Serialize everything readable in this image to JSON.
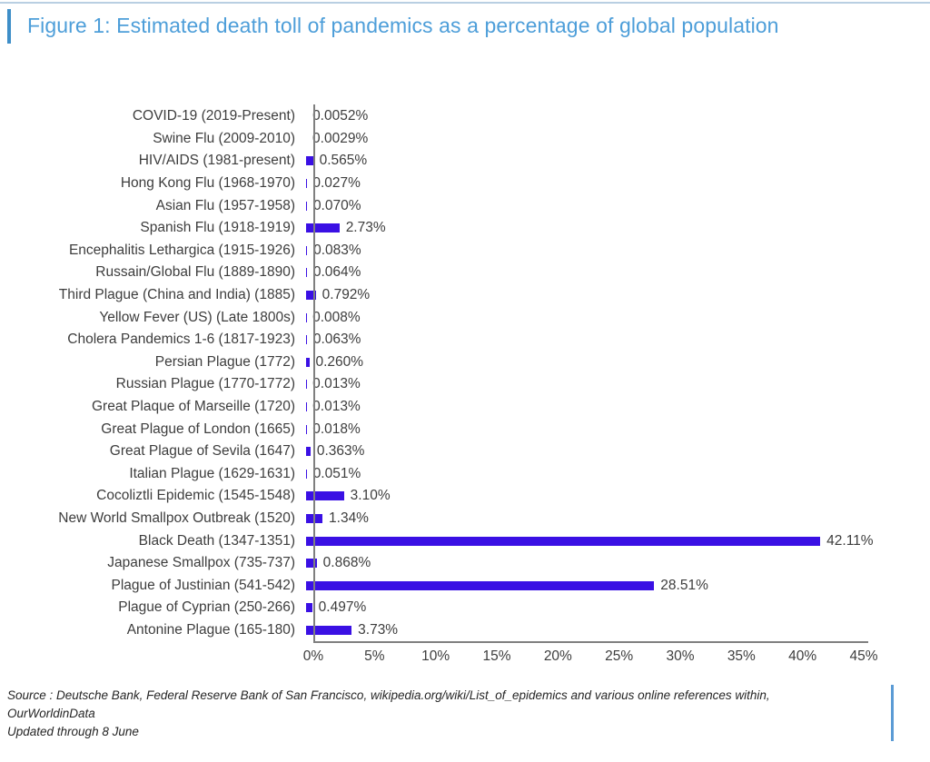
{
  "header": {
    "title": "Figure 1: Estimated death toll of pandemics as a percentage of global population"
  },
  "chart_data": {
    "type": "bar",
    "orientation": "horizontal",
    "title": "Estimated death toll of pandemics as a percentage of global population",
    "categories": [
      "COVID-19 (2019-Present)",
      "Swine Flu (2009-2010)",
      "HIV/AIDS (1981-present)",
      "Hong Kong Flu (1968-1970)",
      "Asian Flu (1957-1958)",
      "Spanish Flu (1918-1919)",
      "Encephalitis Lethargica (1915-1926)",
      "Russain/Global Flu (1889-1890)",
      "Third Plague (China and India) (1885)",
      "Yellow Fever (US) (Late 1800s)",
      "Cholera Pandemics 1-6 (1817-1923)",
      "Persian Plague (1772)",
      "Russian Plague (1770-1772)",
      "Great Plaque of Marseille (1720)",
      "Great Plague of London (1665)",
      "Great Plague of Sevila (1647)",
      "Italian Plague (1629-1631)",
      "Cocoliztli Epidemic (1545-1548)",
      "New World Smallpox Outbreak (1520)",
      "Black Death (1347-1351)",
      "Japanese Smallpox (735-737)",
      "Plague of Justinian (541-542)",
      "Plague of Cyprian (250-266)",
      "Antonine Plague (165-180)"
    ],
    "values": [
      0.0052,
      0.0029,
      0.565,
      0.027,
      0.07,
      2.73,
      0.083,
      0.064,
      0.792,
      0.008,
      0.063,
      0.26,
      0.013,
      0.013,
      0.018,
      0.363,
      0.051,
      3.1,
      1.34,
      42.11,
      0.868,
      28.51,
      0.497,
      3.73
    ],
    "value_labels": [
      "0.0052%",
      "0.0029%",
      "0.565%",
      "0.027%",
      "0.070%",
      "2.73%",
      "0.083%",
      "0.064%",
      "0.792%",
      "0.008%",
      "0.063%",
      "0.260%",
      "0.013%",
      "0.013%",
      "0.018%",
      "0.363%",
      "0.051%",
      "3.10%",
      "1.34%",
      "42.11%",
      "0.868%",
      "28.51%",
      "0.497%",
      "3.73%"
    ],
    "xlim": [
      0,
      45
    ],
    "x_ticks": [
      "0%",
      "5%",
      "10%",
      "15%",
      "20%",
      "25%",
      "30%",
      "35%",
      "40%",
      "45%"
    ],
    "grid": "off",
    "legend": "none",
    "xlabel": "",
    "ylabel": "",
    "bar_color": "#3a10e4",
    "axis_color": "#7f7f7f",
    "label_color": "#3d3d3d",
    "title_color": "#4d9ed9"
  },
  "footer": {
    "source_line1": "Source : Deutsche Bank, Federal Reserve Bank of San Francisco, wikipedia.org/wiki/List_of_epidemics and various online references within,",
    "source_line2": "OurWorldinData",
    "source_line3": "Updated through 8 June"
  }
}
